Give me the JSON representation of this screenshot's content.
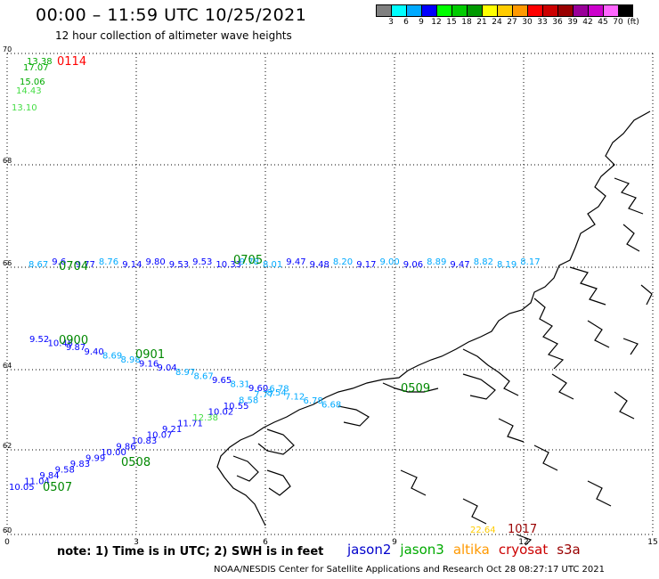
{
  "title": "00:00 – 11:59 UTC 10/25/2021",
  "subtitle": "12 hour collection of altimeter wave heights",
  "legend": {
    "colors": [
      "#808080",
      "#00ffff",
      "#00aaff",
      "#0000ff",
      "#00ff00",
      "#00cc00",
      "#009900",
      "#ffff00",
      "#ffcc00",
      "#ff9900",
      "#ff0000",
      "#cc0000",
      "#990000",
      "#990099",
      "#cc00cc",
      "#ff66ff",
      "#000000"
    ],
    "labels": [
      "3",
      "6",
      "9",
      "12",
      "15",
      "18",
      "21",
      "24",
      "27",
      "30",
      "33",
      "36",
      "39",
      "42",
      "45",
      "70",
      "(ft)"
    ]
  },
  "axes": {
    "x_ticks": [
      "0",
      "3",
      "6",
      "9",
      "12",
      "15"
    ],
    "y_ticks": [
      "70",
      "68",
      "66",
      "64",
      "62",
      "60"
    ]
  },
  "map_data": {
    "passes": [
      {
        "name": "jason3",
        "time": "0114",
        "color": "#ff0000"
      },
      {
        "name": "jason3",
        "time": "0704",
        "color": "#008800"
      },
      {
        "name": "jason3",
        "time": "0705",
        "color": "#008800"
      },
      {
        "name": "jason3",
        "time": "0900",
        "color": "#008800"
      },
      {
        "name": "jason3",
        "time": "0901",
        "color": "#008800"
      },
      {
        "name": "jason3",
        "time": "0509",
        "color": "#008800"
      },
      {
        "name": "jason3",
        "time": "0508",
        "color": "#008800"
      },
      {
        "name": "jason3",
        "time": "0507",
        "color": "#008800"
      },
      {
        "name": "cryosat",
        "time": "1017",
        "color": "#990000"
      }
    ],
    "track_top": [
      {
        "v": "13.38",
        "c": "#00aa00"
      },
      {
        "v": "17.07",
        "c": "#00aa00"
      },
      {
        "v": "15.06",
        "c": "#00aa00"
      },
      {
        "v": "14.43",
        "c": "#44dd44"
      },
      {
        "v": "13.10",
        "c": "#44dd44"
      }
    ],
    "track_66": [
      {
        "v": "8.67",
        "c": "#00aaff"
      },
      {
        "v": "9.6",
        "c": "#0000ff"
      },
      {
        "v": "9.77",
        "c": "#0000ff"
      },
      {
        "v": "8.76",
        "c": "#00aaff"
      },
      {
        "v": "9.14",
        "c": "#0000ff"
      },
      {
        "v": "9.80",
        "c": "#0000ff"
      },
      {
        "v": "9.53",
        "c": "#0000ff"
      },
      {
        "v": "9.53",
        "c": "#0000ff"
      },
      {
        "v": "10.33",
        "c": "#0000ff"
      },
      {
        "v": "9.78",
        "c": "#00aaff"
      },
      {
        "v": "8.01",
        "c": "#00aaff"
      },
      {
        "v": "9.47",
        "c": "#0000ff"
      },
      {
        "v": "9.48",
        "c": "#0000ff"
      },
      {
        "v": "8.20",
        "c": "#00aaff"
      },
      {
        "v": "9.17",
        "c": "#0000ff"
      },
      {
        "v": "9.00",
        "c": "#00aaff"
      },
      {
        "v": "9.06",
        "c": "#0000ff"
      },
      {
        "v": "8.89",
        "c": "#00aaff"
      },
      {
        "v": "9.47",
        "c": "#0000ff"
      },
      {
        "v": "8.82",
        "c": "#00aaff"
      },
      {
        "v": "8.19",
        "c": "#00aaff"
      },
      {
        "v": "8.17",
        "c": "#00aaff"
      }
    ],
    "track_64": [
      {
        "v": "9.52",
        "c": "#0000ff"
      },
      {
        "v": "10.45",
        "c": "#0000ff"
      },
      {
        "v": "9.87",
        "c": "#0000ff"
      },
      {
        "v": "9.40",
        "c": "#0000ff"
      },
      {
        "v": "8.69",
        "c": "#00aaff"
      },
      {
        "v": "8.98",
        "c": "#00aaff"
      },
      {
        "v": "9.16",
        "c": "#0000ff"
      },
      {
        "v": "9.04",
        "c": "#0000ff"
      },
      {
        "v": "8.97",
        "c": "#00aaff"
      },
      {
        "v": "8.67",
        "c": "#00aaff"
      },
      {
        "v": "9.65",
        "c": "#0000ff"
      },
      {
        "v": "8.31",
        "c": "#00aaff"
      },
      {
        "v": "9.60",
        "c": "#0000ff"
      },
      {
        "v": "8.54",
        "c": "#00aaff"
      },
      {
        "v": "7.12",
        "c": "#00aaff"
      },
      {
        "v": "6.78",
        "c": "#00aaff"
      },
      {
        "v": "6.68",
        "c": "#00aaff"
      }
    ],
    "track_62": [
      {
        "v": "10.05",
        "c": "#0000ff"
      },
      {
        "v": "11.04",
        "c": "#0000ff"
      },
      {
        "v": "9.84",
        "c": "#0000ff"
      },
      {
        "v": "9.58",
        "c": "#0000ff"
      },
      {
        "v": "9.83",
        "c": "#0000ff"
      },
      {
        "v": "9.99",
        "c": "#0000ff"
      },
      {
        "v": "10.00",
        "c": "#0000ff"
      },
      {
        "v": "9.86",
        "c": "#0000ff"
      },
      {
        "v": "10.83",
        "c": "#0000ff"
      },
      {
        "v": "10.07",
        "c": "#0000ff"
      },
      {
        "v": "9.21",
        "c": "#0000ff"
      },
      {
        "v": "11.71",
        "c": "#0000ff"
      },
      {
        "v": "12.38",
        "c": "#44dd44"
      },
      {
        "v": "10.02",
        "c": "#0000ff"
      },
      {
        "v": "10.55",
        "c": "#0000ff"
      },
      {
        "v": "8.58",
        "c": "#00aaff"
      },
      {
        "v": "7.77",
        "c": "#00aaff"
      },
      {
        "v": "6.78",
        "c": "#00aaff"
      }
    ],
    "cryosat_value": {
      "v": "22.64",
      "c": "#ffcc00"
    }
  },
  "note": "note:  1) Time is in UTC;  2) SWH is in feet",
  "satellites": [
    {
      "name": "jason2",
      "color": "#0000cc"
    },
    {
      "name": "jason3",
      "color": "#00aa00"
    },
    {
      "name": "altika",
      "color": "#ff9900"
    },
    {
      "name": "cryosat",
      "color": "#cc0000"
    },
    {
      "name": "s3a",
      "color": "#990000"
    }
  ],
  "credit": "NOAA/NESDIS Center for Satellite Applications and Research    Oct 28 08:27:17 UTC 2021"
}
